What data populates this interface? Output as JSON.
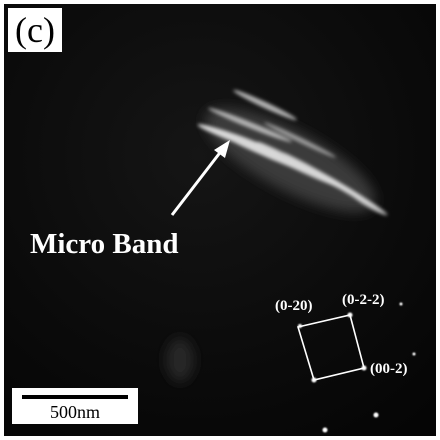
{
  "panel_label": "(c)",
  "annotation": "Micro Band",
  "diffraction": {
    "labels": [
      "(0-20)",
      "(0-2-2)",
      "(00-2)"
    ]
  },
  "scale_bar": {
    "label": "500nm"
  }
}
